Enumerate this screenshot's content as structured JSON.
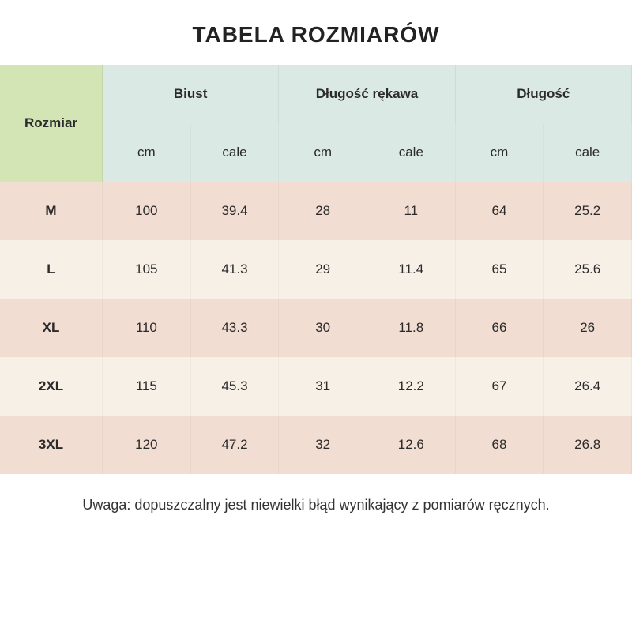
{
  "title": "TABELA ROZMIARÓW",
  "table": {
    "size_header": "Rozmiar",
    "measure_groups": [
      "Biust",
      "Długość rękawa",
      "Długość"
    ],
    "units": [
      "cm",
      "cale",
      "cm",
      "cale",
      "cm",
      "cale"
    ],
    "rows": [
      {
        "size": "M",
        "values": [
          "100",
          "39.4",
          "28",
          "11",
          "64",
          "25.2"
        ]
      },
      {
        "size": "L",
        "values": [
          "105",
          "41.3",
          "29",
          "11.4",
          "65",
          "25.6"
        ]
      },
      {
        "size": "XL",
        "values": [
          "110",
          "43.3",
          "30",
          "11.8",
          "66",
          "26"
        ]
      },
      {
        "size": "2XL",
        "values": [
          "115",
          "45.3",
          "31",
          "12.2",
          "67",
          "26.4"
        ]
      },
      {
        "size": "3XL",
        "values": [
          "120",
          "47.2",
          "32",
          "12.6",
          "68",
          "26.8"
        ]
      }
    ],
    "row_colors": [
      "#f1ddd2",
      "#f7f0e7"
    ],
    "header_size_bg": "#d3e4b5",
    "header_measure_bg": "#dbe9e5",
    "text_color": "#2b2b2b"
  },
  "note": "Uwaga: dopuszczalny jest niewielki błąd wynikający z pomiarów ręcznych."
}
